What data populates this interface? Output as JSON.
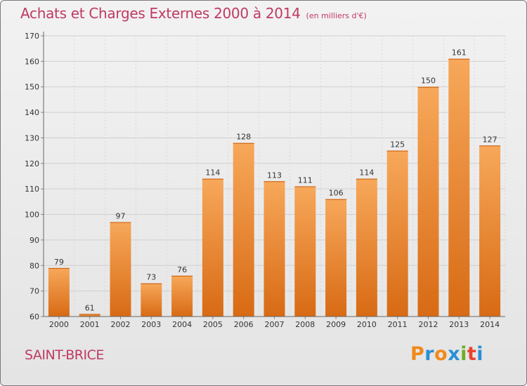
{
  "title": "Achats et Charges Externes 2000 à 2014",
  "subtitle": "(en milliers d'€)",
  "city": "SAINT-BRICE",
  "logo": {
    "letters": [
      "P",
      "r",
      "o",
      "x",
      "i",
      "t",
      "i"
    ],
    "colors": [
      "#f08a1c",
      "#2a8fd4",
      "#f08a1c",
      "#2a8fd4",
      "#6ab023",
      "#e8432e",
      "#2a8fd4"
    ]
  },
  "colors": {
    "bar_light": "#f7a85a",
    "bar_dark": "#d86a14",
    "title": "#bf3a63"
  },
  "chart_data": {
    "type": "bar",
    "categories": [
      "2000",
      "2001",
      "2002",
      "2003",
      "2004",
      "2005",
      "2006",
      "2007",
      "2008",
      "2009",
      "2010",
      "2011",
      "2012",
      "2013",
      "2014"
    ],
    "values": [
      79,
      61,
      97,
      73,
      76,
      114,
      128,
      113,
      111,
      106,
      114,
      125,
      150,
      161,
      127
    ],
    "data_labels": [
      "79",
      "61",
      "97",
      "73",
      "76",
      "114",
      "128",
      "113",
      "111",
      "106",
      "114",
      "125",
      "150",
      "161",
      "127"
    ],
    "ylim": [
      60,
      170
    ],
    "yticks": [
      60,
      70,
      80,
      90,
      100,
      110,
      120,
      130,
      140,
      150,
      160,
      170
    ],
    "ytick_labels": [
      "60",
      "70",
      "80",
      "90",
      "100",
      "110",
      "120",
      "130",
      "140",
      "150",
      "160",
      "170"
    ],
    "grid": true
  }
}
